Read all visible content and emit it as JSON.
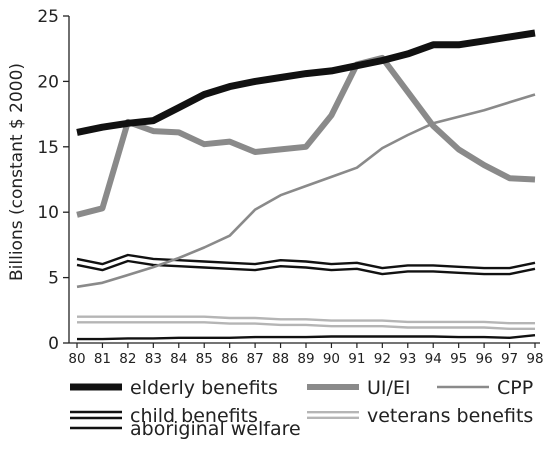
{
  "chart_data": {
    "type": "line",
    "ylabel": "Billions (constant $ 2000)",
    "xlabel": "",
    "ylim": [
      0,
      25
    ],
    "yticks": [
      0,
      5,
      10,
      15,
      20,
      25
    ],
    "categories": [
      "80",
      "81",
      "82",
      "83",
      "84",
      "85",
      "86",
      "87",
      "88",
      "89",
      "90",
      "91",
      "92",
      "93",
      "94",
      "95",
      "96",
      "97",
      "98"
    ],
    "grid": false,
    "legend_position": "bottom",
    "series": [
      {
        "name": "elderly benefits",
        "style": "thick-black",
        "color": "#111111",
        "values": [
          16.1,
          16.5,
          16.8,
          17.0,
          18.0,
          19.0,
          19.6,
          20.0,
          20.3,
          20.6,
          20.8,
          21.2,
          21.6,
          22.1,
          22.8,
          22.8,
          23.1,
          23.4,
          23.7
        ]
      },
      {
        "name": "UI/EI",
        "style": "thick-gray",
        "color": "#8a8a8a",
        "values": [
          9.8,
          10.3,
          16.9,
          16.2,
          16.1,
          15.2,
          15.4,
          14.6,
          14.8,
          15.0,
          17.4,
          21.3,
          21.8,
          19.2,
          16.6,
          14.8,
          13.6,
          12.6,
          12.5
        ]
      },
      {
        "name": "CPP",
        "style": "thin-gray",
        "color": "#8a8a8a",
        "values": [
          4.3,
          4.6,
          5.2,
          5.8,
          6.5,
          7.3,
          8.2,
          10.2,
          11.3,
          12.0,
          12.7,
          13.4,
          14.9,
          15.9,
          16.8,
          17.3,
          17.8,
          18.4,
          19.0
        ]
      },
      {
        "name": "child benefits",
        "style": "double-black",
        "color": "#111111",
        "values": [
          6.2,
          5.8,
          6.5,
          6.2,
          6.1,
          6.0,
          5.9,
          5.8,
          6.1,
          6.0,
          5.8,
          5.9,
          5.5,
          5.7,
          5.7,
          5.6,
          5.5,
          5.5,
          5.9
        ]
      },
      {
        "name": "veterans benefits",
        "style": "double-gray",
        "color": "#b5b5b5",
        "values": [
          1.8,
          1.8,
          1.8,
          1.8,
          1.8,
          1.8,
          1.7,
          1.7,
          1.6,
          1.6,
          1.5,
          1.5,
          1.5,
          1.4,
          1.4,
          1.4,
          1.4,
          1.3,
          1.3
        ]
      },
      {
        "name": "aboriginal welfare",
        "style": "thin-black",
        "color": "#111111",
        "values": [
          0.3,
          0.3,
          0.35,
          0.35,
          0.4,
          0.4,
          0.4,
          0.45,
          0.45,
          0.45,
          0.5,
          0.5,
          0.5,
          0.5,
          0.5,
          0.45,
          0.45,
          0.4,
          0.6
        ]
      }
    ]
  }
}
